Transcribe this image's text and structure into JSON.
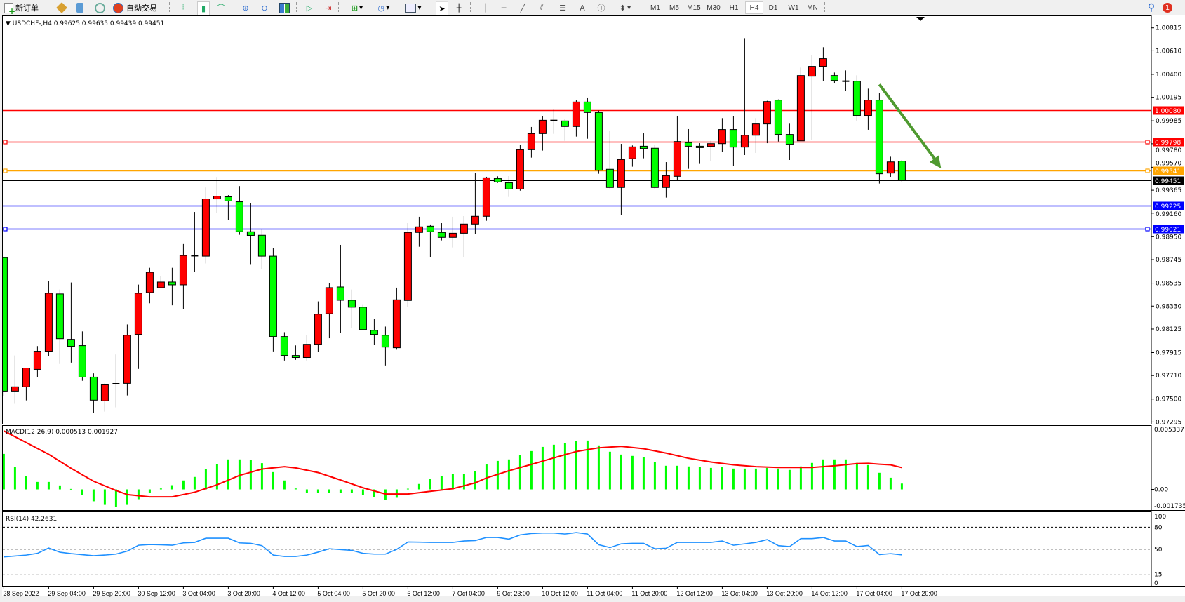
{
  "toolbar": {
    "new_order_label": "新订单",
    "auto_trading_label": "自动交易",
    "timeframes": [
      "M1",
      "M5",
      "M15",
      "M30",
      "H1",
      "H4",
      "D1",
      "W1",
      "MN"
    ],
    "selected_timeframe": "H4",
    "notification_count": "1",
    "icons": [
      "new-order-icon",
      "market-watch-icon",
      "data-window-icon",
      "signals-icon",
      "auto-trading-icon",
      "bar-chart-icon",
      "candlestick-icon",
      "line-chart-icon",
      "zoom-in-icon",
      "zoom-out-icon",
      "tile-windows-icon",
      "auto-scroll-icon",
      "chart-shift-icon",
      "indicators-icon",
      "periods-icon",
      "templates-icon",
      "cursor-icon",
      "crosshair-icon",
      "vertical-line-icon",
      "horizontal-line-icon",
      "trendline-icon",
      "equidistant-channel-icon",
      "fibonacci-icon",
      "text-icon",
      "text-label-icon",
      "arrows-icon",
      "search-icon",
      "notification-icon"
    ]
  },
  "chart": {
    "header": "USDCHF-,H4  0.99625 0.99635 0.99439 0.99451",
    "colors": {
      "bull": "#ff0000",
      "bear": "#00ff00",
      "macd_hist": "#00ff00",
      "signal": "#ff0000",
      "rsi": "#1e90ff",
      "arrow": "#4f9a30"
    },
    "price_ticks": [
      "1.00815",
      "1.00610",
      "1.00400",
      "1.00195",
      "0.99985",
      "0.99780",
      "0.99570",
      "0.99365",
      "0.99160",
      "0.98950",
      "0.98745",
      "0.98535",
      "0.98330",
      "0.98125",
      "0.97915",
      "0.97710",
      "0.97500",
      "0.97295"
    ],
    "levels": [
      {
        "price": "1.00080",
        "color": "#ff0000",
        "marker": false
      },
      {
        "price": "0.99798",
        "color": "#ff0000",
        "marker": true
      },
      {
        "price": "0.99541",
        "color": "#ffa500",
        "marker": true
      },
      {
        "price": "0.99225",
        "color": "#0000ff",
        "marker": false
      },
      {
        "price": "0.99021",
        "color": "#0000ff",
        "marker": true
      }
    ],
    "bid": "0.99451",
    "arrow": {
      "from": [
        78,
        1.0031
      ],
      "to": [
        83.5,
        0.9956
      ]
    },
    "time_labels": [
      "28 Sep 2022",
      "29 Sep 04:00",
      "29 Sep 20:00",
      "30 Sep 12:00",
      "3 Oct 04:00",
      "3 Oct 20:00",
      "4 Oct 12:00",
      "5 Oct 04:00",
      "5 Oct 20:00",
      "6 Oct 12:00",
      "7 Oct 04:00",
      "9 Oct 23:00",
      "10 Oct 12:00",
      "11 Oct 04:00",
      "11 Oct 20:00",
      "12 Oct 12:00",
      "13 Oct 04:00",
      "13 Oct 20:00",
      "14 Oct 12:00",
      "17 Oct 04:00",
      "17 Oct 20:00"
    ]
  },
  "chart_data": [
    {
      "type": "candlestick",
      "title": "USDCHF-,H4",
      "ylim": [
        0.97295,
        1.00815
      ],
      "ohlc": [
        [
          0.98763,
          0.98771,
          0.9753,
          0.97571
        ],
        [
          0.97571,
          0.97889,
          0.97457,
          0.97609
        ],
        [
          0.97609,
          0.97777,
          0.97488,
          0.97777
        ],
        [
          0.97765,
          0.97973,
          0.97694,
          0.97927
        ],
        [
          0.97927,
          0.98553,
          0.97881,
          0.98445
        ],
        [
          0.98439,
          0.98478,
          0.97813,
          0.98039
        ],
        [
          0.98033,
          0.98541,
          0.97825,
          0.97971
        ],
        [
          0.97977,
          0.98104,
          0.97663,
          0.97696
        ],
        [
          0.97696,
          0.97729,
          0.97378,
          0.9749
        ],
        [
          0.97484,
          0.9764,
          0.97388,
          0.97627
        ],
        [
          0.97636,
          0.97898,
          0.97426,
          0.97636
        ],
        [
          0.9764,
          0.98166,
          0.97532,
          0.9807
        ],
        [
          0.98077,
          0.98522,
          0.97769,
          0.98445
        ],
        [
          0.98451,
          0.98672,
          0.98355,
          0.98632
        ],
        [
          0.98495,
          0.98597,
          0.98495,
          0.98545
        ],
        [
          0.98545,
          0.98672,
          0.98337,
          0.9852
        ],
        [
          0.9852,
          0.98884,
          0.98305,
          0.98782
        ],
        [
          0.9878,
          0.99171,
          0.98636,
          0.9878
        ],
        [
          0.98776,
          0.99389,
          0.98711,
          0.99287
        ],
        [
          0.99287,
          0.99483,
          0.9916,
          0.99312
        ],
        [
          0.99306,
          0.99321,
          0.99098,
          0.99269
        ],
        [
          0.99262,
          0.99402,
          0.98967,
          0.98994
        ],
        [
          0.98994,
          0.99252,
          0.98705,
          0.98961
        ],
        [
          0.98963,
          0.99017,
          0.98661,
          0.98776
        ],
        [
          0.98776,
          0.98846,
          0.97925,
          0.98058
        ],
        [
          0.98058,
          0.98097,
          0.97844,
          0.97889
        ],
        [
          0.97889,
          0.97979,
          0.9785,
          0.97871
        ],
        [
          0.97871,
          0.98073,
          0.97844,
          0.97989
        ],
        [
          0.97989,
          0.98372,
          0.97919,
          0.98258
        ],
        [
          0.98262,
          0.98534,
          0.98043,
          0.98495
        ],
        [
          0.98501,
          0.98877,
          0.98093,
          0.98382
        ],
        [
          0.98382,
          0.98478,
          0.98131,
          0.9832
        ],
        [
          0.9832,
          0.98347,
          0.9812,
          0.9812
        ],
        [
          0.98114,
          0.98216,
          0.97981,
          0.98077
        ],
        [
          0.9807,
          0.98147,
          0.978,
          0.97964
        ],
        [
          0.97958,
          0.98495,
          0.97941,
          0.98386
        ],
        [
          0.9838,
          0.99071,
          0.98321,
          0.98988
        ],
        [
          0.98988,
          0.99128,
          0.9886,
          0.99038
        ],
        [
          0.99044,
          0.99059,
          0.98766,
          0.98994
        ],
        [
          0.98988,
          0.99071,
          0.98917,
          0.98944
        ],
        [
          0.98944,
          0.99128,
          0.98854,
          0.98981
        ],
        [
          0.98981,
          0.99134,
          0.98766,
          0.99063
        ],
        [
          0.99063,
          0.99522,
          0.98975,
          0.99132
        ],
        [
          0.99132,
          0.99485,
          0.99092,
          0.99476
        ],
        [
          0.9947,
          0.99489,
          0.9943,
          0.99439
        ],
        [
          0.99432,
          0.99491,
          0.99305,
          0.99376
        ],
        [
          0.99376,
          0.99773,
          0.99361,
          0.99727
        ],
        [
          0.99727,
          0.9993,
          0.99656,
          0.99871
        ],
        [
          0.99871,
          1.00024,
          0.99719,
          0.9999
        ],
        [
          0.99988,
          1.00093,
          0.99869,
          0.99988
        ],
        [
          0.99984,
          1.00005,
          0.99806,
          0.99934
        ],
        [
          0.99934,
          1.00168,
          0.99844,
          1.00153
        ],
        [
          1.00153,
          1.00193,
          0.99825,
          1.00059
        ],
        [
          1.00059,
          1.00076,
          0.99512,
          0.99543
        ],
        [
          0.99552,
          0.99898,
          0.9938,
          0.99389
        ],
        [
          0.99389,
          0.99779,
          0.99142,
          0.99639
        ],
        [
          0.99646,
          0.99765,
          0.99575,
          0.99752
        ],
        [
          0.99758,
          0.99873,
          0.9965,
          0.99737
        ],
        [
          0.9974,
          0.99773,
          0.9938,
          0.99389
        ],
        [
          0.99389,
          0.99616,
          0.99299,
          0.99495
        ],
        [
          0.99489,
          1.0003,
          0.99455,
          0.998
        ],
        [
          0.9979,
          0.99911,
          0.99556,
          0.99758
        ],
        [
          0.99758,
          0.99785,
          0.996,
          0.99746
        ],
        [
          0.99756,
          0.99806,
          0.99623,
          0.99781
        ],
        [
          0.99781,
          1.00009,
          0.9971,
          0.99907
        ],
        [
          0.99907,
          1.00028,
          0.99579,
          0.9975
        ],
        [
          0.9975,
          1.00723,
          0.99679,
          0.99856
        ],
        [
          0.99856,
          1.00009,
          0.99698,
          0.99957
        ],
        [
          0.99957,
          1.00164,
          0.99785,
          1.00157
        ],
        [
          1.0017,
          1.00176,
          0.998,
          0.99863
        ],
        [
          0.99863,
          0.99959,
          0.99635,
          0.99775
        ],
        [
          0.99806,
          1.0046,
          0.99806,
          1.00389
        ],
        [
          1.00383,
          1.00573,
          0.99817,
          1.00471
        ],
        [
          1.00471,
          1.00642,
          1.00343,
          1.0054
        ],
        [
          1.00389,
          1.00416,
          1.00318,
          1.00345
        ],
        [
          1.00339,
          1.00435,
          1.00255,
          1.00339
        ],
        [
          1.00339,
          1.00391,
          0.99986,
          1.00032
        ],
        [
          1.00032,
          1.00272,
          0.99905,
          1.0017
        ],
        [
          1.0017,
          1.00235,
          0.99424,
          0.99512
        ],
        [
          0.99518,
          0.99664,
          0.99485,
          0.99618
        ],
        [
          0.99625,
          0.99635,
          0.99439,
          0.99451
        ]
      ]
    },
    {
      "type": "bar",
      "title": "MACD(12,26,9) 0.000513 0.001927",
      "ylim": [
        -0.001735,
        0.005337
      ],
      "ticks": [
        "0.005337",
        "0.00",
        "-0.001735"
      ],
      "histogram": [
        0.00314,
        0.00197,
        0.00116,
        0.00066,
        0.00066,
        0.00035,
        4e-05,
        -0.00052,
        -0.00105,
        -0.00137,
        -0.00155,
        -0.00137,
        -0.00087,
        -0.00031,
        8e-05,
        0.00037,
        0.00079,
        0.0011,
        0.00178,
        0.00225,
        0.00265,
        0.00265,
        0.00259,
        0.00232,
        0.00153,
        0.00079,
        8e-05,
        -0.00031,
        -0.00031,
        -0.00031,
        -0.00031,
        -0.00031,
        -0.0005,
        -0.00068,
        -0.00093,
        -0.00074,
        6e-05,
        0.00048,
        0.00091,
        0.00116,
        0.00134,
        0.00134,
        0.00159,
        0.0022,
        0.00252,
        0.00265,
        0.00302,
        0.00339,
        0.00376,
        0.00395,
        0.00408,
        0.00426,
        0.00432,
        0.00389,
        0.00333,
        0.00308,
        0.00296,
        0.00283,
        0.0024,
        0.00209,
        0.00209,
        0.00203,
        0.00197,
        0.0019,
        0.00197,
        0.00184,
        0.00184,
        0.00184,
        0.0019,
        0.00184,
        0.00172,
        0.00203,
        0.00234,
        0.00265,
        0.00265,
        0.00265,
        0.00234,
        0.00215,
        0.00147,
        0.00103,
        0.000513
      ],
      "signal": [
        [
          0,
          0.00517
        ],
        [
          2,
          0.00414
        ],
        [
          4,
          0.0031
        ],
        [
          6,
          0.00186
        ],
        [
          8,
          0.00072
        ],
        [
          10,
          -0.0001
        ],
        [
          11,
          -0.00046
        ],
        [
          13,
          -0.00066
        ],
        [
          15,
          -0.00066
        ],
        [
          17,
          -0.00025
        ],
        [
          19,
          0.00041
        ],
        [
          21,
          0.00124
        ],
        [
          23,
          0.0018
        ],
        [
          25,
          0.00201
        ],
        [
          26,
          0.0019
        ],
        [
          28,
          0.00149
        ],
        [
          30,
          0.00083
        ],
        [
          32,
          0.00014
        ],
        [
          34,
          -0.00041
        ],
        [
          36,
          -0.00041
        ],
        [
          38,
          -0.00017
        ],
        [
          40,
          6e-05
        ],
        [
          42,
          0.00058
        ],
        [
          43,
          0.00101
        ],
        [
          45,
          0.00165
        ],
        [
          47,
          0.00221
        ],
        [
          49,
          0.00279
        ],
        [
          51,
          0.00335
        ],
        [
          53,
          0.00368
        ],
        [
          55,
          0.00381
        ],
        [
          57,
          0.0036
        ],
        [
          59,
          0.00321
        ],
        [
          61,
          0.00275
        ],
        [
          63,
          0.00242
        ],
        [
          65,
          0.00217
        ],
        [
          67,
          0.00201
        ],
        [
          69,
          0.00194
        ],
        [
          72,
          0.00194
        ],
        [
          74,
          0.00209
        ],
        [
          76,
          0.00228
        ],
        [
          77,
          0.0023
        ],
        [
          78,
          0.00223
        ],
        [
          79,
          0.00217
        ],
        [
          80,
          0.001927
        ]
      ]
    },
    {
      "type": "line",
      "title": "RSI(14) 42.2631",
      "ylim": [
        0,
        100
      ],
      "ticks": [
        "100",
        "80",
        "50",
        "15",
        "0"
      ],
      "levels": [
        80,
        50,
        15
      ],
      "values": [
        39.5,
        40.7,
        42,
        44.3,
        51.6,
        45.9,
        44,
        42.5,
        41.1,
        42,
        43.3,
        47.4,
        55.4,
        56.4,
        56,
        55.4,
        58.6,
        59.3,
        65,
        65,
        65,
        58.6,
        58,
        54.8,
        42,
        40.1,
        40.1,
        42,
        46,
        50.6,
        49.4,
        48.4,
        44.3,
        43.3,
        43.3,
        49.7,
        59.9,
        59.6,
        59.3,
        59.3,
        59.3,
        61.2,
        61.8,
        66,
        66,
        63.7,
        69.5,
        71.4,
        72,
        72,
        70.7,
        72.7,
        70.7,
        56.1,
        52.2,
        57.3,
        58,
        58,
        50.6,
        51.3,
        59.3,
        59.3,
        59.3,
        59.3,
        61.2,
        55.4,
        57.3,
        59.3,
        63.1,
        54.8,
        53.5,
        64.4,
        64.4,
        66,
        61.2,
        61.2,
        53.5,
        55.1,
        42.7,
        43.9,
        42.2631
      ]
    }
  ]
}
